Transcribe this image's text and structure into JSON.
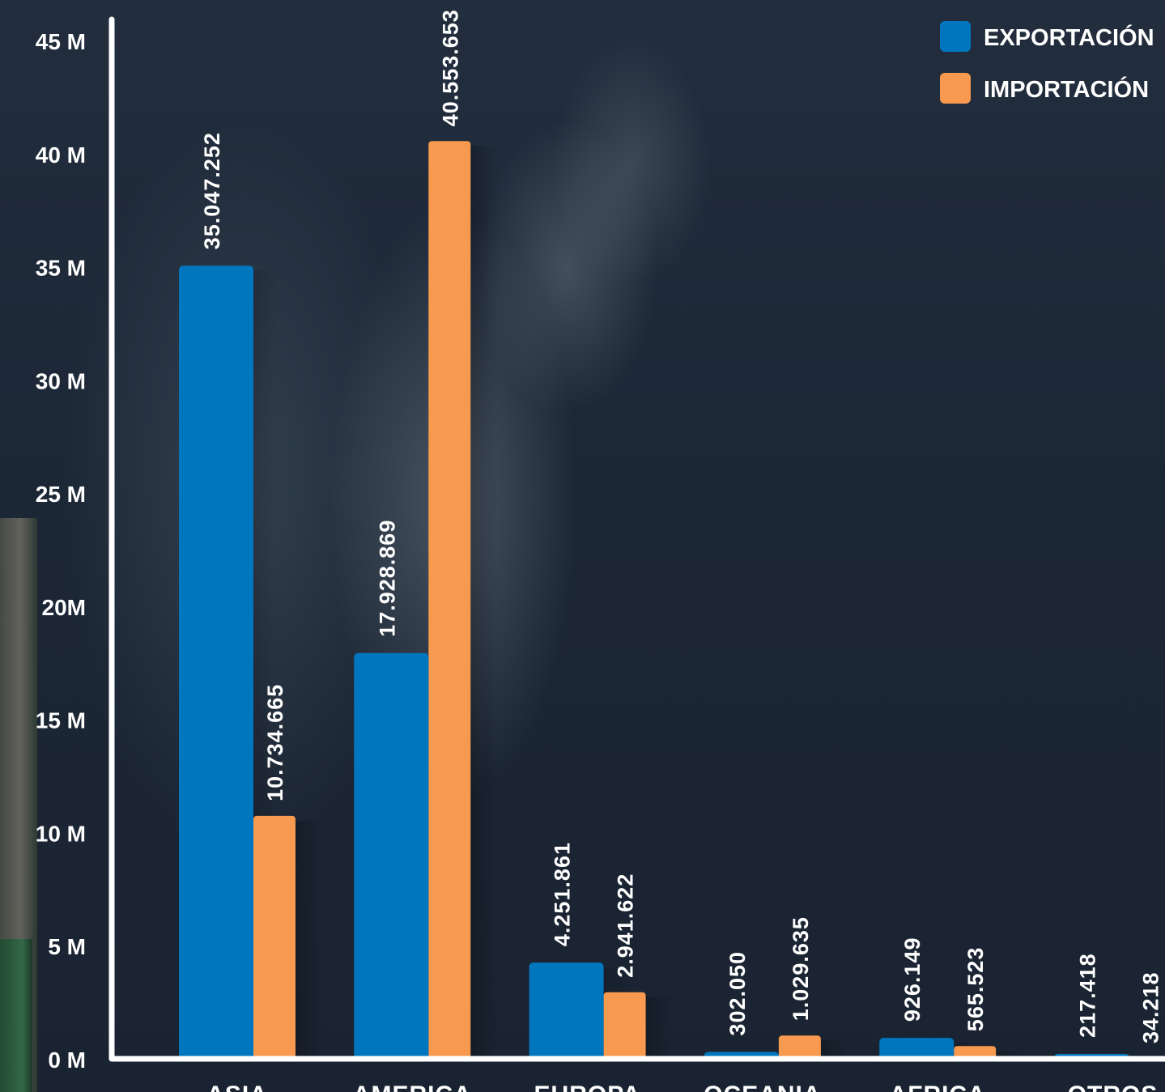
{
  "colors": {
    "export": "#0076bf",
    "import": "#f7994f",
    "axis": "#ffffff"
  },
  "legend": [
    {
      "label": "EXPORTACIÓN",
      "color": "#0076bf"
    },
    {
      "label": "IMPORTACIÓN",
      "color": "#f7994f"
    }
  ],
  "chart_data": {
    "type": "bar",
    "title": "",
    "xlabel": "",
    "ylabel": "",
    "ylim": [
      0,
      45000000
    ],
    "y_ticks": [
      {
        "value": 0,
        "label": "0 M"
      },
      {
        "value": 5000000,
        "label": "5 M"
      },
      {
        "value": 10000000,
        "label": "10 M"
      },
      {
        "value": 15000000,
        "label": "15 M"
      },
      {
        "value": 20000000,
        "label": "20M"
      },
      {
        "value": 25000000,
        "label": "25 M"
      },
      {
        "value": 30000000,
        "label": "30 M"
      },
      {
        "value": 35000000,
        "label": "35 M"
      },
      {
        "value": 40000000,
        "label": "40 M"
      },
      {
        "value": 45000000,
        "label": "45 M"
      }
    ],
    "grid": false,
    "legend_position": "top-right",
    "categories": [
      "ASIA",
      "AMERICA",
      "EUROPA",
      "OCEANIA",
      "AFRICA",
      "OTROS"
    ],
    "series": [
      {
        "name": "EXPORTACIÓN",
        "values": [
          35047252,
          17928869,
          4251861,
          302050,
          926149,
          217418
        ],
        "labels": [
          "35.047.252",
          "17.928.869",
          "4.251.861",
          "302.050",
          "926.149",
          "217.418"
        ]
      },
      {
        "name": "IMPORTACIÓN",
        "values": [
          10734665,
          40553653,
          2941622,
          1029635,
          565523,
          34218
        ],
        "labels": [
          "10.734.665",
          "40.553.653",
          "2.941.622",
          "1.029.635",
          "565.523",
          "34.218"
        ]
      }
    ]
  }
}
